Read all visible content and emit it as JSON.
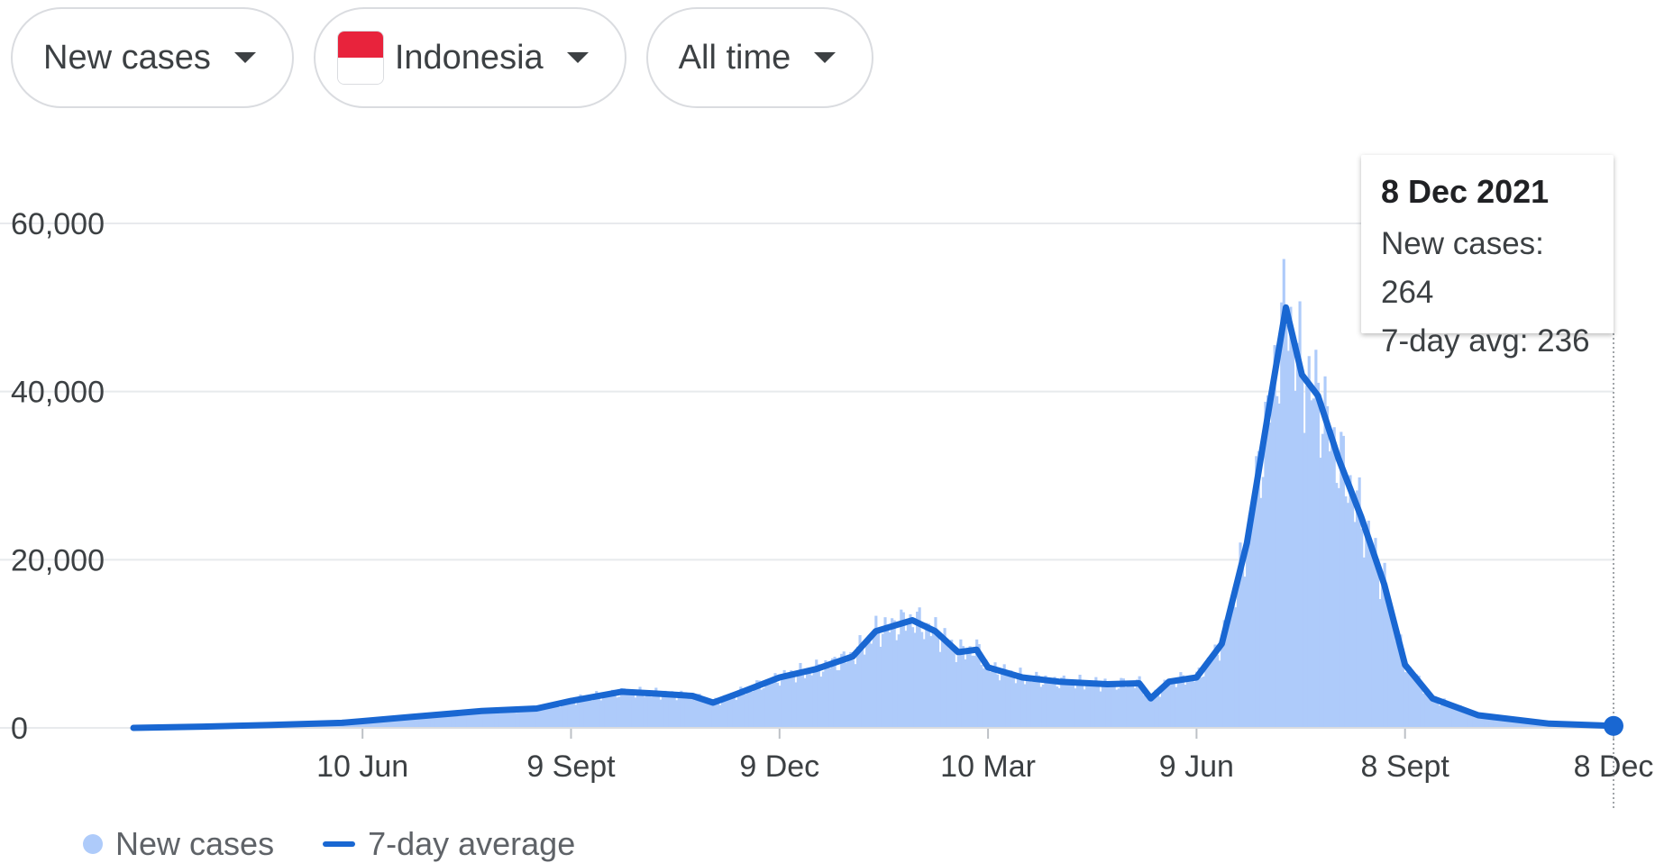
{
  "controls": {
    "metric": "New cases",
    "country": "Indonesia",
    "range": "All time"
  },
  "colors": {
    "bars": "#aecbfa",
    "line": "#1967d2",
    "grid": "#e8eaed",
    "flag_red": "#e8233c"
  },
  "tooltip": {
    "date": "8 Dec 2021",
    "new_cases": "New cases: 264",
    "avg": "7-day avg: 236"
  },
  "legend": {
    "bars": "New cases",
    "line": "7-day average"
  },
  "chart_data": {
    "type": "bar",
    "title": "",
    "xlabel": "",
    "ylabel": "",
    "ylim": [
      0,
      60000
    ],
    "y_ticks": [
      0,
      20000,
      40000,
      60000
    ],
    "y_tick_labels": [
      "0",
      "20,000",
      "40,000",
      "60,000"
    ],
    "x_range": [
      "2020-03-02",
      "2021-12-08"
    ],
    "x_ticks": [
      "2020-06-10",
      "2020-09-09",
      "2020-12-09",
      "2021-03-10",
      "2021-06-09",
      "2021-09-08",
      "2021-12-08"
    ],
    "x_tick_labels": [
      "10 Jun",
      "9 Sept",
      "9 Dec",
      "10 Mar",
      "9 Jun",
      "8 Sept",
      "8 Dec"
    ],
    "series": [
      {
        "name": "7-day average",
        "points": [
          [
            "2020-03-02",
            0
          ],
          [
            "2020-04-01",
            150
          ],
          [
            "2020-05-01",
            350
          ],
          [
            "2020-06-01",
            600
          ],
          [
            "2020-06-10",
            800
          ],
          [
            "2020-07-01",
            1300
          ],
          [
            "2020-08-01",
            2000
          ],
          [
            "2020-08-25",
            2300
          ],
          [
            "2020-09-09",
            3200
          ],
          [
            "2020-10-01",
            4300
          ],
          [
            "2020-10-15",
            4100
          ],
          [
            "2020-11-01",
            3800
          ],
          [
            "2020-11-10",
            3000
          ],
          [
            "2020-11-20",
            4000
          ],
          [
            "2020-12-09",
            6000
          ],
          [
            "2020-12-25",
            7000
          ],
          [
            "2021-01-10",
            8500
          ],
          [
            "2021-01-20",
            11500
          ],
          [
            "2021-02-05",
            12800
          ],
          [
            "2021-02-15",
            11500
          ],
          [
            "2021-02-25",
            9000
          ],
          [
            "2021-03-05",
            9300
          ],
          [
            "2021-03-10",
            7200
          ],
          [
            "2021-03-25",
            6000
          ],
          [
            "2021-04-10",
            5500
          ],
          [
            "2021-05-01",
            5200
          ],
          [
            "2021-05-15",
            5300
          ],
          [
            "2021-05-20",
            3500
          ],
          [
            "2021-05-28",
            5500
          ],
          [
            "2021-06-09",
            6000
          ],
          [
            "2021-06-20",
            10000
          ],
          [
            "2021-07-01",
            22000
          ],
          [
            "2021-07-10",
            37000
          ],
          [
            "2021-07-18",
            50000
          ],
          [
            "2021-07-25",
            42000
          ],
          [
            "2021-08-01",
            39500
          ],
          [
            "2021-08-10",
            32000
          ],
          [
            "2021-08-20",
            25000
          ],
          [
            "2021-08-30",
            17000
          ],
          [
            "2021-09-08",
            7500
          ],
          [
            "2021-09-20",
            3500
          ],
          [
            "2021-10-10",
            1500
          ],
          [
            "2021-11-10",
            500
          ],
          [
            "2021-12-08",
            236
          ]
        ]
      }
    ],
    "highlight": {
      "x": "2021-12-08",
      "y": 236
    }
  }
}
